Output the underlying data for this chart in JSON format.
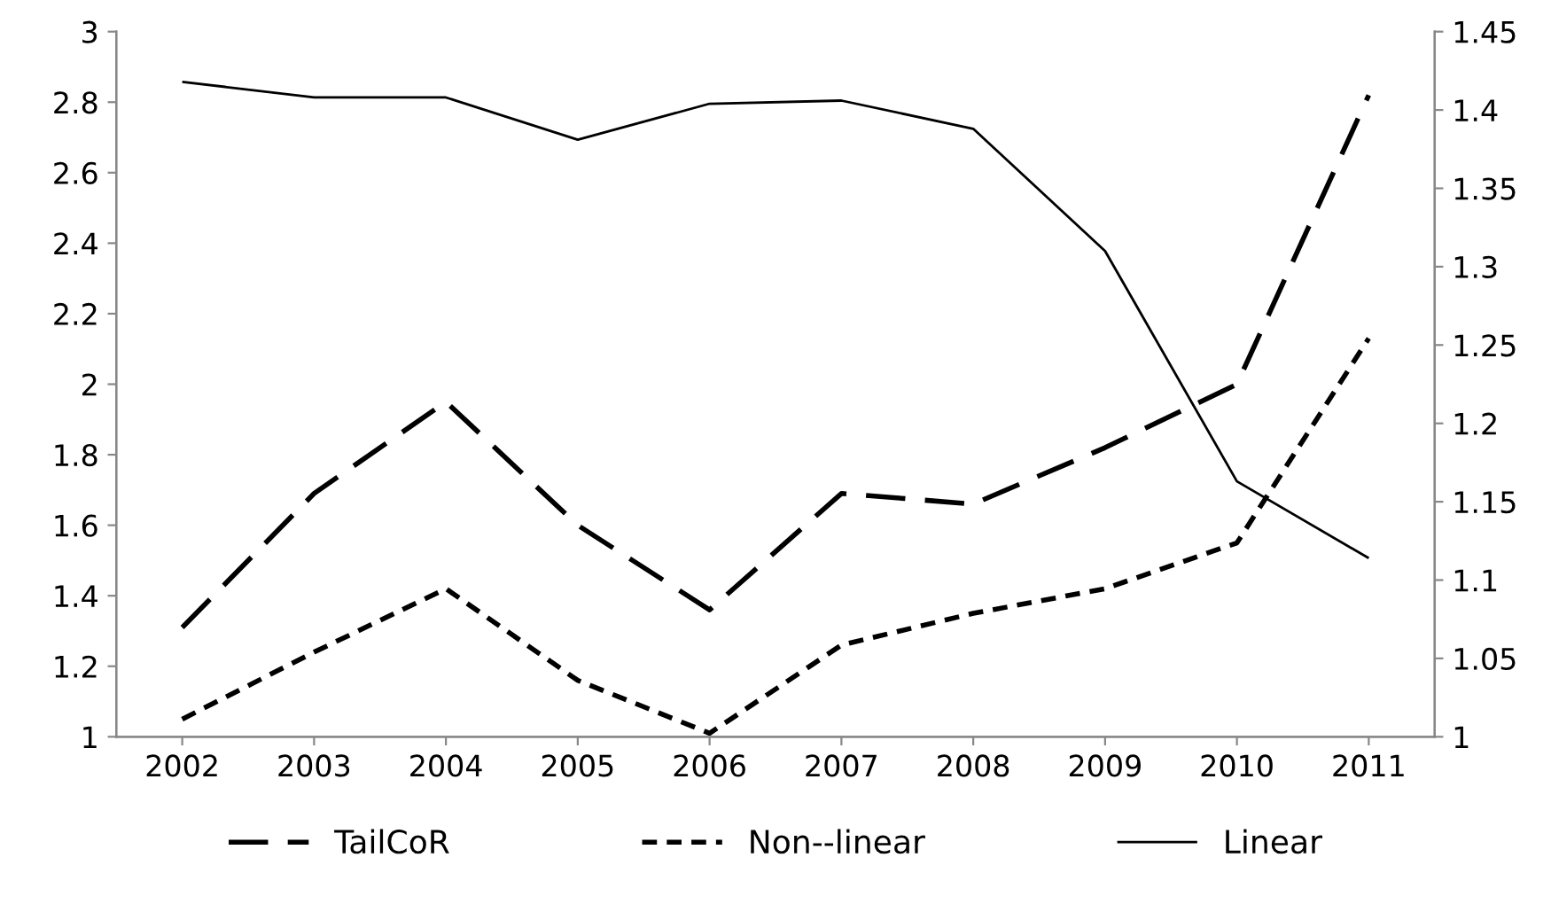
{
  "chart_data": {
    "type": "line",
    "categories": [
      "2002",
      "2003",
      "2004",
      "2005",
      "2006",
      "2007",
      "2008",
      "2009",
      "2010",
      "2011"
    ],
    "series": [
      {
        "name": "TailCoR",
        "color": "#000000",
        "line_style": "dashed",
        "values": [
          1.31,
          1.69,
          1.95,
          1.6,
          1.36,
          1.69,
          1.66,
          1.82,
          2.0,
          2.82
        ]
      },
      {
        "name": "Non--linear",
        "color": "#000000",
        "line_style": "dotted",
        "values": [
          1.05,
          1.24,
          1.42,
          1.16,
          1.01,
          1.26,
          1.35,
          1.42,
          1.55,
          2.13
        ]
      },
      {
        "name": "Linear",
        "color": "#000000",
        "line_style": "solid",
        "axis": "y2",
        "values": [
          1.418,
          1.408,
          1.408,
          1.381,
          1.404,
          1.406,
          1.388,
          1.31,
          1.163,
          1.114
        ]
      }
    ],
    "ylim": [
      1,
      3
    ],
    "yticks": [
      1,
      1.2,
      1.4,
      1.6,
      1.8,
      2,
      2.2,
      2.4,
      2.6,
      2.8,
      3
    ],
    "y2lim": [
      1,
      1.45
    ],
    "y2ticks": [
      1,
      1.05,
      1.1,
      1.15,
      1.2,
      1.25,
      1.3,
      1.35,
      1.4,
      1.45
    ],
    "grid": false,
    "legend": "bottom"
  }
}
